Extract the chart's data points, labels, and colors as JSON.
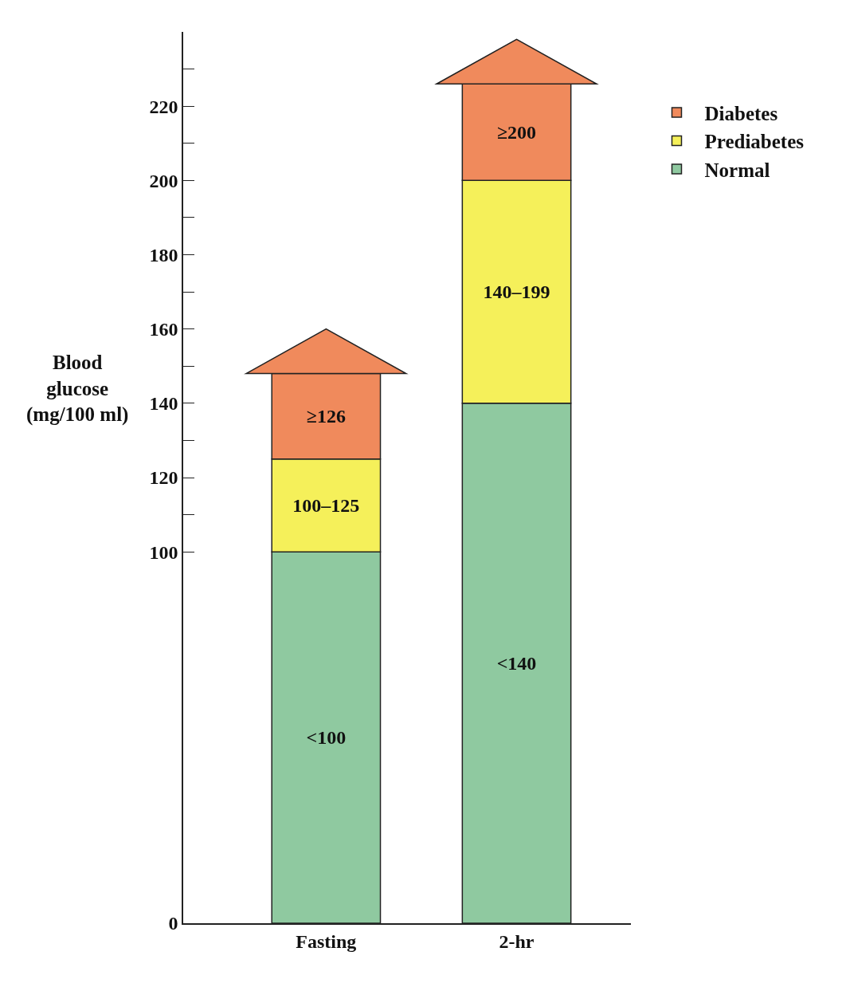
{
  "chart_data": {
    "type": "bar",
    "stacked": true,
    "categories": [
      "Fasting",
      "2-hr"
    ],
    "ylabel": "Blood\nglucose\n(mg/100 ml)",
    "series": [
      {
        "name": "Normal",
        "color": "#8fc9a0",
        "values": [
          100,
          140
        ],
        "value_labels": [
          "<100",
          "<140"
        ]
      },
      {
        "name": "Prediabetes",
        "color": "#f5f05a",
        "values": [
          25,
          60
        ],
        "value_labels": [
          "100–125",
          "140–199"
        ]
      },
      {
        "name": "Diabetes",
        "color": "#f08a5c",
        "values": [
          23,
          26
        ],
        "value_labels": [
          "≥126",
          "≥200"
        ]
      }
    ],
    "ylim": [
      0,
      240
    ],
    "yticks": [
      0,
      100,
      {
        "value": 110,
        "label": null
      },
      120,
      {
        "value": 130,
        "label": null
      },
      140,
      {
        "value": 150,
        "label": null
      },
      160,
      {
        "value": 170,
        "label": null
      },
      180,
      {
        "value": 190,
        "label": null
      },
      200,
      {
        "value": 210,
        "label": null
      },
      220,
      {
        "value": 230,
        "label": null
      }
    ],
    "grid": false,
    "legend": "right"
  }
}
